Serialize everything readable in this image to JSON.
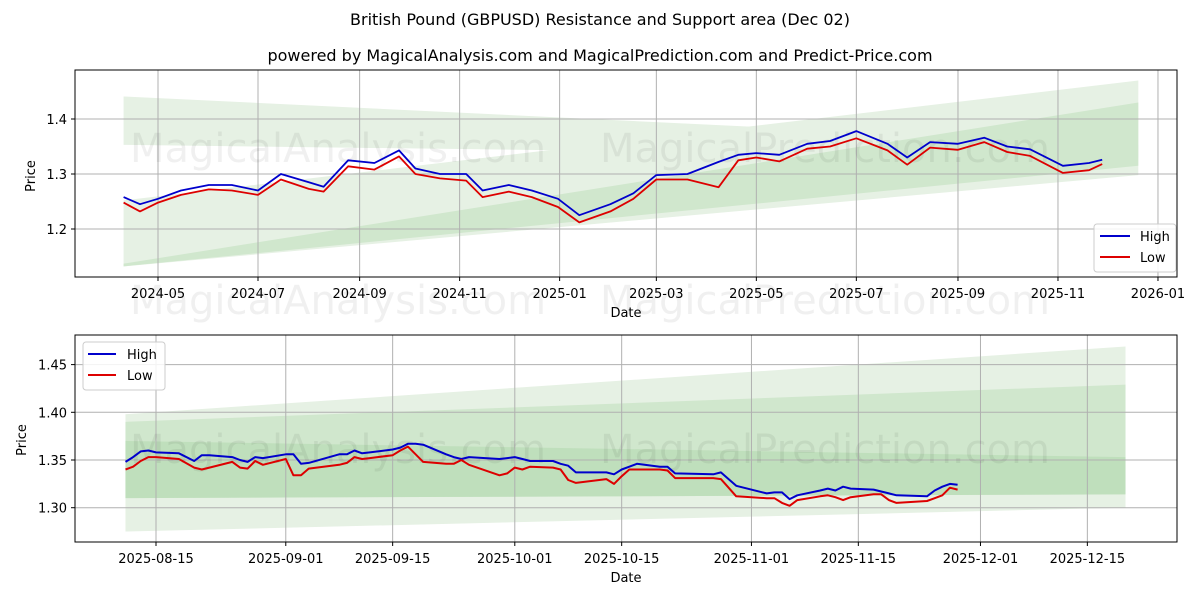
{
  "header": {
    "title": "British Pound (GBPUSD) Resistance and Support area (Dec 02)",
    "subtitle": "powered by MagicalAnalysis.com and MagicalPrediction.com and Predict-Price.com"
  },
  "watermarks": [
    "MagicalAnalysis.com",
    "MagicalPrediction.com"
  ],
  "colors": {
    "high": "#0000cc",
    "low": "#dd0000",
    "band_light": "#e6f1e4",
    "band_mid": "#d0e7cd",
    "band_dark": "#b9dcb5",
    "grid": "#b0b0b0"
  },
  "chart_data": [
    {
      "type": "line",
      "title": "",
      "xlabel": "Date",
      "ylabel": "Price",
      "ylim": [
        1.113,
        1.489
      ],
      "grid": true,
      "legend_position": "lower right",
      "x_ticks": [
        "2024-05",
        "2024-07",
        "2024-09",
        "2024-11",
        "2025-01",
        "2025-03",
        "2025-05",
        "2025-07",
        "2025-09",
        "2025-11",
        "2026-01"
      ],
      "y_ticks": [
        "1.2",
        "1.3",
        "1.4"
      ],
      "legend": [
        "High",
        "Low"
      ],
      "x": [
        "2024-04-10",
        "2024-04-20",
        "2024-05-01",
        "2024-05-15",
        "2024-06-01",
        "2024-06-15",
        "2024-07-01",
        "2024-07-15",
        "2024-08-01",
        "2024-08-10",
        "2024-08-25",
        "2024-09-10",
        "2024-09-25",
        "2024-10-05",
        "2024-10-20",
        "2024-11-05",
        "2024-11-15",
        "2024-12-01",
        "2024-12-15",
        "2024-12-31",
        "2025-01-13",
        "2025-02-01",
        "2025-02-15",
        "2025-03-01",
        "2025-03-20",
        "2025-04-08",
        "2025-04-20",
        "2025-05-01",
        "2025-05-15",
        "2025-06-01",
        "2025-06-15",
        "2025-07-01",
        "2025-07-20",
        "2025-08-01",
        "2025-08-15",
        "2025-09-01",
        "2025-09-17",
        "2025-10-01",
        "2025-10-15",
        "2025-11-04",
        "2025-11-20",
        "2025-11-28"
      ],
      "series": [
        {
          "name": "High",
          "values": [
            1.258,
            1.245,
            1.255,
            1.27,
            1.28,
            1.28,
            1.27,
            1.3,
            1.285,
            1.277,
            1.325,
            1.32,
            1.343,
            1.31,
            1.3,
            1.3,
            1.27,
            1.28,
            1.27,
            1.255,
            1.225,
            1.245,
            1.265,
            1.298,
            1.3,
            1.322,
            1.335,
            1.338,
            1.335,
            1.355,
            1.36,
            1.378,
            1.355,
            1.33,
            1.358,
            1.355,
            1.366,
            1.35,
            1.345,
            1.315,
            1.32,
            1.326
          ]
        },
        {
          "name": "Low",
          "values": [
            1.248,
            1.232,
            1.248,
            1.262,
            1.272,
            1.27,
            1.262,
            1.29,
            1.273,
            1.268,
            1.314,
            1.308,
            1.332,
            1.3,
            1.292,
            1.288,
            1.258,
            1.268,
            1.258,
            1.24,
            1.212,
            1.232,
            1.255,
            1.29,
            1.29,
            1.276,
            1.325,
            1.33,
            1.323,
            1.346,
            1.35,
            1.365,
            1.343,
            1.317,
            1.348,
            1.344,
            1.358,
            1.34,
            1.333,
            1.302,
            1.307,
            1.318
          ]
        }
      ],
      "bands": [
        {
          "name": "resistance_outer",
          "x": [
            "2024-04-10",
            "2025-12-20"
          ],
          "upper": [
            1.441,
            1.352
          ],
          "lower": [
            1.353,
            1.33
          ]
        },
        {
          "name": "support_outer",
          "x": [
            "2024-04-10",
            "2025-12-20"
          ],
          "upper": [
            1.252,
            1.47
          ],
          "lower": [
            1.132,
            1.298
          ]
        },
        {
          "name": "support_inner",
          "x": [
            "2024-04-10",
            "2025-12-20"
          ],
          "upper": [
            1.137,
            1.43
          ],
          "lower": [
            1.132,
            1.315
          ]
        }
      ]
    },
    {
      "type": "line",
      "title": "",
      "xlabel": "Date",
      "ylabel": "Price",
      "ylim": [
        1.264,
        1.481
      ],
      "grid": true,
      "legend_position": "upper left",
      "x_ticks": [
        "2025-08-15",
        "2025-09-01",
        "2025-09-15",
        "2025-10-01",
        "2025-10-15",
        "2025-11-01",
        "2025-11-15",
        "2025-12-01",
        "2025-12-15"
      ],
      "y_ticks": [
        "1.30",
        "1.35",
        "1.40",
        "1.45"
      ],
      "legend": [
        "High",
        "Low"
      ],
      "x": [
        "2025-08-11",
        "2025-08-12",
        "2025-08-13",
        "2025-08-14",
        "2025-08-15",
        "2025-08-18",
        "2025-08-20",
        "2025-08-21",
        "2025-08-22",
        "2025-08-25",
        "2025-08-26",
        "2025-08-27",
        "2025-08-28",
        "2025-08-29",
        "2025-09-01",
        "2025-09-02",
        "2025-09-03",
        "2025-09-04",
        "2025-09-08",
        "2025-09-09",
        "2025-09-10",
        "2025-09-11",
        "2025-09-12",
        "2025-09-15",
        "2025-09-16",
        "2025-09-17",
        "2025-09-18",
        "2025-09-19",
        "2025-09-22",
        "2025-09-23",
        "2025-09-24",
        "2025-09-25",
        "2025-09-29",
        "2025-09-30",
        "2025-10-01",
        "2025-10-02",
        "2025-10-03",
        "2025-10-06",
        "2025-10-07",
        "2025-10-08",
        "2025-10-09",
        "2025-10-13",
        "2025-10-14",
        "2025-10-15",
        "2025-10-16",
        "2025-10-17",
        "2025-10-20",
        "2025-10-21",
        "2025-10-22",
        "2025-10-27",
        "2025-10-28",
        "2025-10-29",
        "2025-10-30",
        "2025-11-03",
        "2025-11-04",
        "2025-11-05",
        "2025-11-06",
        "2025-11-07",
        "2025-11-10",
        "2025-11-11",
        "2025-11-12",
        "2025-11-13",
        "2025-11-14",
        "2025-11-17",
        "2025-11-18",
        "2025-11-19",
        "2025-11-20",
        "2025-11-24",
        "2025-11-25",
        "2025-11-26",
        "2025-11-27",
        "2025-11-28"
      ],
      "series": [
        {
          "name": "High",
          "values": [
            1.348,
            1.353,
            1.359,
            1.36,
            1.358,
            1.357,
            1.349,
            1.355,
            1.355,
            1.353,
            1.35,
            1.348,
            1.353,
            1.352,
            1.356,
            1.356,
            1.346,
            1.347,
            1.356,
            1.356,
            1.36,
            1.357,
            1.358,
            1.361,
            1.363,
            1.367,
            1.367,
            1.366,
            1.356,
            1.353,
            1.351,
            1.353,
            1.351,
            1.352,
            1.353,
            1.351,
            1.349,
            1.349,
            1.346,
            1.344,
            1.337,
            1.337,
            1.335,
            1.34,
            1.343,
            1.346,
            1.343,
            1.343,
            1.336,
            1.335,
            1.337,
            1.33,
            1.323,
            1.315,
            1.316,
            1.316,
            1.309,
            1.313,
            1.318,
            1.32,
            1.318,
            1.322,
            1.32,
            1.319,
            1.317,
            1.315,
            1.313,
            1.312,
            1.318,
            1.322,
            1.325,
            1.324
          ]
        },
        {
          "name": "Low",
          "values": [
            1.34,
            1.343,
            1.349,
            1.353,
            1.353,
            1.351,
            1.342,
            1.34,
            1.342,
            1.348,
            1.342,
            1.341,
            1.349,
            1.345,
            1.351,
            1.334,
            1.334,
            1.341,
            1.345,
            1.347,
            1.353,
            1.351,
            1.352,
            1.355,
            1.36,
            1.364,
            1.356,
            1.348,
            1.346,
            1.346,
            1.35,
            1.345,
            1.334,
            1.336,
            1.342,
            1.34,
            1.343,
            1.342,
            1.34,
            1.329,
            1.326,
            1.33,
            1.325,
            1.333,
            1.34,
            1.34,
            1.34,
            1.339,
            1.331,
            1.331,
            1.33,
            1.321,
            1.312,
            1.31,
            1.31,
            1.305,
            1.302,
            1.308,
            1.312,
            1.313,
            1.311,
            1.308,
            1.311,
            1.314,
            1.314,
            1.308,
            1.305,
            1.307,
            1.31,
            1.313,
            1.321,
            1.319
          ]
        }
      ],
      "bands": [
        {
          "name": "outer",
          "x": [
            "2025-08-11",
            "2025-12-20"
          ],
          "upper": [
            1.398,
            1.469
          ],
          "lower": [
            1.275,
            1.3
          ]
        },
        {
          "name": "middle",
          "x": [
            "2025-08-11",
            "2025-12-20"
          ],
          "upper": [
            1.39,
            1.429
          ],
          "lower": [
            1.31,
            1.314
          ]
        },
        {
          "name": "inner",
          "x": [
            "2025-08-11",
            "2025-12-20"
          ],
          "upper": [
            1.37,
            1.353
          ],
          "lower": [
            1.31,
            1.314
          ]
        }
      ]
    }
  ]
}
